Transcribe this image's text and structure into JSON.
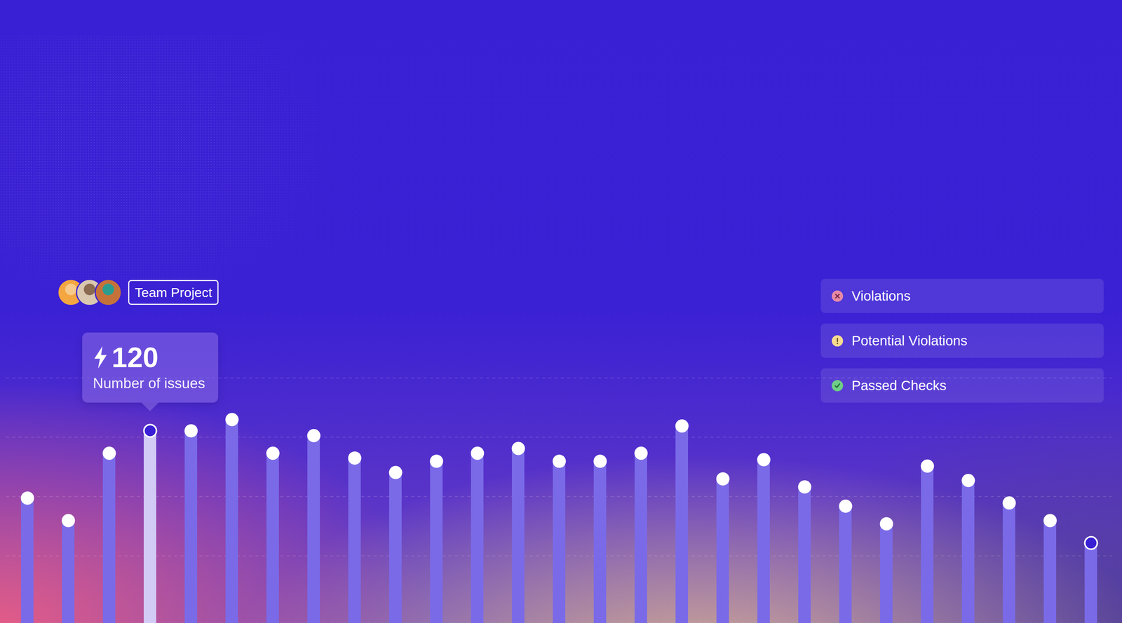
{
  "chart_data": {
    "type": "bar",
    "title": "Team Project",
    "annotations": [
      "Number of issues"
    ],
    "legend_items": [
      "Violations",
      "Potential Violations",
      "Passed Checks"
    ],
    "categories": [
      null,
      null,
      null,
      null,
      null,
      null,
      null,
      null,
      null,
      null,
      null,
      null,
      null,
      null,
      null,
      null,
      null,
      null,
      null,
      null,
      null,
      null,
      null,
      null,
      null,
      null,
      null
    ],
    "values": [
      78,
      64,
      106,
      120,
      120,
      127,
      106,
      117,
      103,
      94,
      101,
      106,
      109,
      101,
      101,
      106,
      123,
      90,
      102,
      85,
      73,
      62,
      98,
      89,
      75,
      64,
      50
    ],
    "colors": [
      "#7a6ae8",
      "#7a6ae8",
      "#7a6ae8",
      "#d2cbf6",
      "#7a6ae8",
      "#7a6ae8",
      "#7a6ae8",
      "#7a6ae8",
      "#7a6ae8",
      "#7a6ae8",
      "#7a6ae8",
      "#7a6ae8",
      "#7a6ae8",
      "#7a6ae8",
      "#7a6ae8",
      "#7a6ae8",
      "#7a6ae8",
      "#7a6ae8",
      "#7a6ae8",
      "#7a6ae8",
      "#7a6ae8",
      "#7a6ae8",
      "#7a6ae8",
      "#7a6ae8",
      "#7a6ae8",
      "#7a6ae8",
      "#7a6ae8"
    ],
    "ylim": [
      0,
      153
    ],
    "yticks": [
      0,
      42,
      79,
      116,
      153
    ],
    "grid": true,
    "tick_labels": false,
    "marker": "circle"
  }
}
